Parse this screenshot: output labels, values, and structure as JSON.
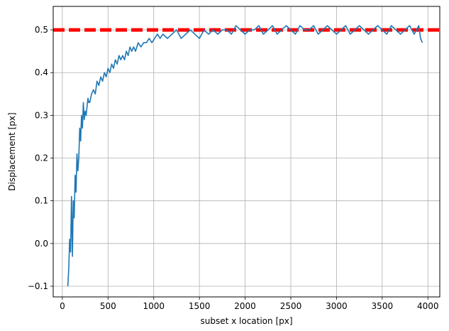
{
  "chart_data": {
    "type": "line",
    "title": "",
    "xlabel": "subset x location [px]",
    "ylabel": "Displacement [px]",
    "xlim": [
      -100,
      4130
    ],
    "ylim": [
      -0.125,
      0.555
    ],
    "xticks": [
      0,
      500,
      1000,
      1500,
      2000,
      2500,
      3000,
      3500,
      4000
    ],
    "xtick_labels": [
      "0",
      "500",
      "1000",
      "1500",
      "2000",
      "2500",
      "3000",
      "3500",
      "4000"
    ],
    "yticks": [
      -0.1,
      0.0,
      0.1,
      0.2,
      0.3,
      0.4,
      0.5
    ],
    "ytick_labels": [
      "−0.1",
      "0.0",
      "0.1",
      "0.2",
      "0.3",
      "0.4",
      "0.5"
    ],
    "grid": true,
    "reference_line": {
      "y": 0.5,
      "color": "#ff0000",
      "style": "dashed"
    },
    "series": [
      {
        "color": "#1f77b4",
        "x": [
          60,
          70,
          80,
          90,
          100,
          110,
          120,
          130,
          140,
          150,
          160,
          170,
          180,
          190,
          200,
          210,
          220,
          230,
          240,
          250,
          260,
          270,
          280,
          290,
          300,
          320,
          340,
          360,
          380,
          400,
          420,
          440,
          460,
          480,
          500,
          520,
          540,
          560,
          580,
          600,
          620,
          640,
          660,
          680,
          700,
          720,
          740,
          760,
          780,
          800,
          830,
          860,
          890,
          920,
          950,
          980,
          1010,
          1040,
          1070,
          1100,
          1150,
          1200,
          1250,
          1300,
          1350,
          1400,
          1450,
          1500,
          1550,
          1600,
          1650,
          1700,
          1750,
          1800,
          1850,
          1900,
          1950,
          2000,
          2050,
          2100,
          2150,
          2200,
          2250,
          2300,
          2350,
          2400,
          2450,
          2500,
          2550,
          2600,
          2650,
          2700,
          2750,
          2800,
          2850,
          2900,
          2950,
          3000,
          3050,
          3100,
          3150,
          3200,
          3250,
          3300,
          3350,
          3400,
          3450,
          3500,
          3550,
          3600,
          3650,
          3700,
          3750,
          3800,
          3850,
          3900,
          3920,
          3940
        ],
        "y": [
          -0.1,
          -0.06,
          0.01,
          -0.02,
          0.11,
          -0.03,
          0.1,
          0.06,
          0.16,
          0.12,
          0.21,
          0.17,
          0.2,
          0.27,
          0.24,
          0.3,
          0.27,
          0.33,
          0.29,
          0.31,
          0.3,
          0.32,
          0.34,
          0.33,
          0.33,
          0.35,
          0.36,
          0.35,
          0.38,
          0.37,
          0.39,
          0.38,
          0.4,
          0.39,
          0.41,
          0.4,
          0.42,
          0.41,
          0.43,
          0.42,
          0.44,
          0.43,
          0.44,
          0.43,
          0.45,
          0.44,
          0.46,
          0.45,
          0.46,
          0.45,
          0.47,
          0.46,
          0.47,
          0.47,
          0.48,
          0.47,
          0.48,
          0.49,
          0.48,
          0.49,
          0.48,
          0.49,
          0.5,
          0.48,
          0.49,
          0.5,
          0.49,
          0.48,
          0.5,
          0.49,
          0.5,
          0.49,
          0.5,
          0.5,
          0.49,
          0.51,
          0.5,
          0.49,
          0.5,
          0.5,
          0.51,
          0.49,
          0.5,
          0.51,
          0.49,
          0.5,
          0.51,
          0.5,
          0.49,
          0.51,
          0.5,
          0.5,
          0.51,
          0.49,
          0.5,
          0.51,
          0.5,
          0.49,
          0.5,
          0.51,
          0.49,
          0.5,
          0.51,
          0.5,
          0.49,
          0.5,
          0.51,
          0.5,
          0.49,
          0.51,
          0.5,
          0.49,
          0.5,
          0.51,
          0.49,
          0.51,
          0.48,
          0.47
        ]
      }
    ]
  }
}
